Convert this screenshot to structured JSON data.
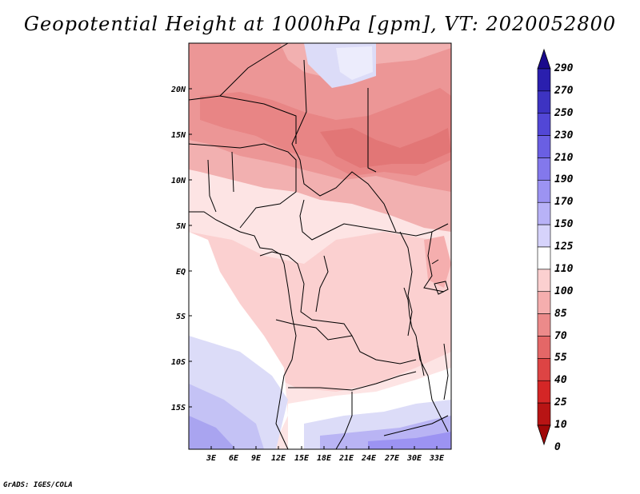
{
  "title": "Geopotential Height at 1000hPa [gpm], VT: 2020052800",
  "footer": "GrADS: IGES/COLA",
  "lat_labels": [
    "20N",
    "15N",
    "10N",
    "5N",
    "EQ",
    "5S",
    "10S",
    "15S"
  ],
  "lon_labels": [
    "3E",
    "6E",
    "9E",
    "12E",
    "15E",
    "18E",
    "21E",
    "24E",
    "27E",
    "30E",
    "33E"
  ],
  "colorbar": {
    "levels": [
      "290",
      "270",
      "250",
      "230",
      "210",
      "190",
      "170",
      "150",
      "125",
      "110",
      "100",
      "85",
      "70",
      "55",
      "40",
      "25",
      "10",
      "0"
    ],
    "colors": [
      "#1a0a8c",
      "#2a1fae",
      "#3d33c2",
      "#5247d6",
      "#6a5fe3",
      "#8378ec",
      "#9c93f2",
      "#b8b2f7",
      "#d6d3fb",
      "#ffffff",
      "#fbd0d0",
      "#f5aeae",
      "#ec8a8a",
      "#e46767",
      "#dd4444",
      "#d42626",
      "#b81414",
      "#a00808"
    ]
  }
}
